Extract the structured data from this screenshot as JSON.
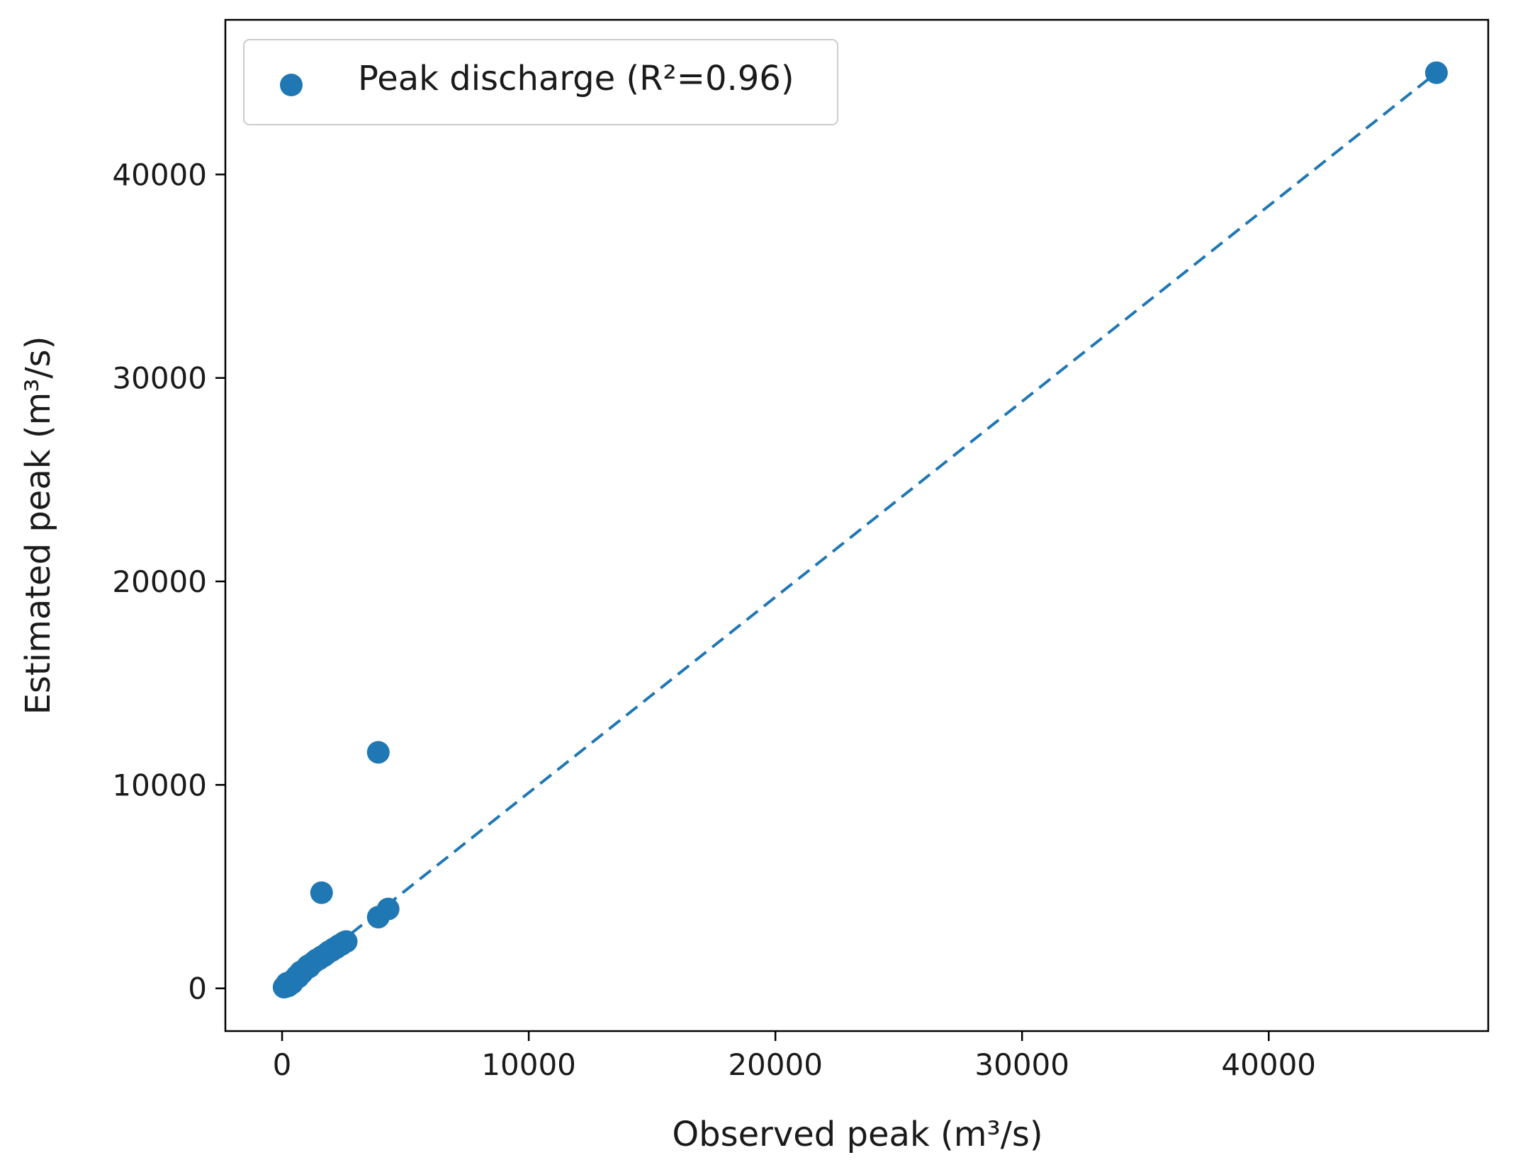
{
  "chart_data": {
    "type": "scatter",
    "title": "",
    "xlabel": "Observed peak (m³/s)",
    "ylabel": "Estimated peak (m³/s)",
    "xlim": [
      -2300,
      48900
    ],
    "ylim": [
      -2100,
      47600
    ],
    "xticks": [
      0,
      10000,
      20000,
      30000,
      40000
    ],
    "yticks": [
      0,
      10000,
      20000,
      30000,
      40000
    ],
    "xtick_labels": [
      "0",
      "10000",
      "20000",
      "30000",
      "40000"
    ],
    "ytick_labels": [
      "0",
      "10000",
      "20000",
      "30000",
      "40000"
    ],
    "grid": false,
    "legend_position": "top-left",
    "color": "#1f77b4",
    "series": [
      {
        "name": "Peak discharge (R²=0.96)",
        "x": [
          80,
          150,
          200,
          250,
          300,
          350,
          400,
          450,
          500,
          550,
          600,
          650,
          700,
          750,
          800,
          850,
          900,
          950,
          1000,
          1050,
          1100,
          1150,
          1200,
          1300,
          1400,
          1500,
          1600,
          1700,
          1800,
          1900,
          2000,
          2100,
          2200,
          2300,
          2400,
          2500,
          2600,
          3900,
          4300,
          1600,
          3900,
          46800
        ],
        "y": [
          60,
          100,
          250,
          120,
          200,
          300,
          250,
          400,
          450,
          500,
          600,
          550,
          700,
          800,
          750,
          850,
          900,
          950,
          1000,
          1100,
          1050,
          1150,
          1200,
          1300,
          1400,
          1450,
          1550,
          1600,
          1700,
          1800,
          1850,
          1950,
          2000,
          2100,
          2150,
          2250,
          2300,
          3500,
          3900,
          4700,
          11600,
          45000
        ]
      }
    ],
    "fit_line": {
      "style": "dashed",
      "x": [
        0,
        46800
      ],
      "y": [
        0,
        45000
      ]
    }
  }
}
